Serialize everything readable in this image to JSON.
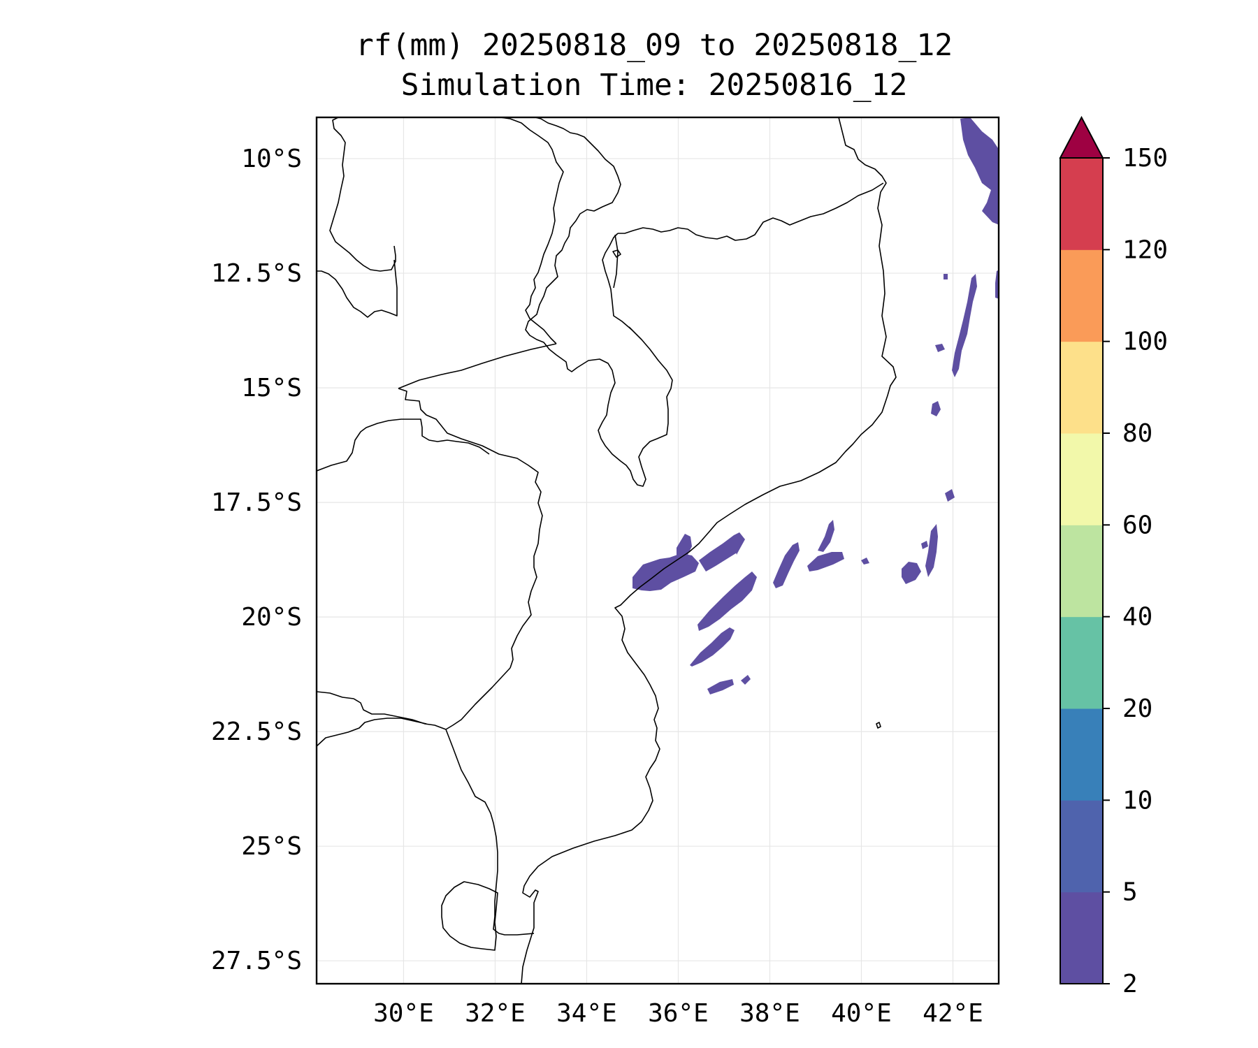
{
  "title": {
    "line1": "rf(mm) 20250818_09 to 20250818_12",
    "line2": "Simulation Time: 20250816_12"
  },
  "map": {
    "lon_range": [
      28.1,
      43.0
    ],
    "lat_range": [
      -28.0,
      -9.1
    ],
    "x_ticks": [
      {
        "value": 30,
        "label": "30°E"
      },
      {
        "value": 32,
        "label": "32°E"
      },
      {
        "value": 34,
        "label": "34°E"
      },
      {
        "value": 36,
        "label": "36°E"
      },
      {
        "value": 38,
        "label": "38°E"
      },
      {
        "value": 40,
        "label": "40°E"
      },
      {
        "value": 42,
        "label": "42°E"
      }
    ],
    "y_ticks": [
      {
        "value": -10,
        "label": "10°S"
      },
      {
        "value": -12.5,
        "label": "12.5°S"
      },
      {
        "value": -15,
        "label": "15°S"
      },
      {
        "value": -17.5,
        "label": "17.5°S"
      },
      {
        "value": -20,
        "label": "20°S"
      },
      {
        "value": -22.5,
        "label": "22.5°S"
      },
      {
        "value": -25,
        "label": "25°S"
      },
      {
        "value": -27.5,
        "label": "27.5°S"
      }
    ],
    "grid": true
  },
  "colorbar": {
    "levels": [
      {
        "label": "2",
        "color": "#5e4fa2"
      },
      {
        "label": "5",
        "color": "#4f63ad"
      },
      {
        "label": "10",
        "color": "#3880b9"
      },
      {
        "label": "20",
        "color": "#66c2a5"
      },
      {
        "label": "40",
        "color": "#bde4a0"
      },
      {
        "label": "60",
        "color": "#f2f8aa"
      },
      {
        "label": "80",
        "color": "#fde08a"
      },
      {
        "label": "100",
        "color": "#fa9b58"
      },
      {
        "label": "120",
        "color": "#d53e4f"
      },
      {
        "label": "150",
        "color": "#9e0142"
      }
    ],
    "extend": "max"
  },
  "rain_areas": [
    {
      "lon": 42.5,
      "lat": -9.9,
      "value": 2
    },
    {
      "lon": 42.4,
      "lat": -11.0,
      "value": 2
    },
    {
      "lon": 42.2,
      "lat": -13.6,
      "value": 2
    },
    {
      "lon": 42.0,
      "lat": -14.2,
      "value": 2
    },
    {
      "lon": 42.9,
      "lat": -12.7,
      "value": 2
    },
    {
      "lon": 41.3,
      "lat": -15.4,
      "value": 2
    },
    {
      "lon": 35.4,
      "lat": -19.1,
      "value": 2
    },
    {
      "lon": 36.6,
      "lat": -18.9,
      "value": 2
    },
    {
      "lon": 36.1,
      "lat": -18.2,
      "value": 2
    },
    {
      "lon": 37.4,
      "lat": -19.8,
      "value": 2
    },
    {
      "lon": 36.8,
      "lat": -20.6,
      "value": 2
    },
    {
      "lon": 38.6,
      "lat": -18.8,
      "value": 2
    },
    {
      "lon": 39.6,
      "lat": -18.6,
      "value": 2
    },
    {
      "lon": 41.2,
      "lat": -18.6,
      "value": 2
    },
    {
      "lon": 37.4,
      "lat": -21.5,
      "value": 2
    },
    {
      "lon": 41.3,
      "lat": -17.4,
      "value": 2
    }
  ]
}
